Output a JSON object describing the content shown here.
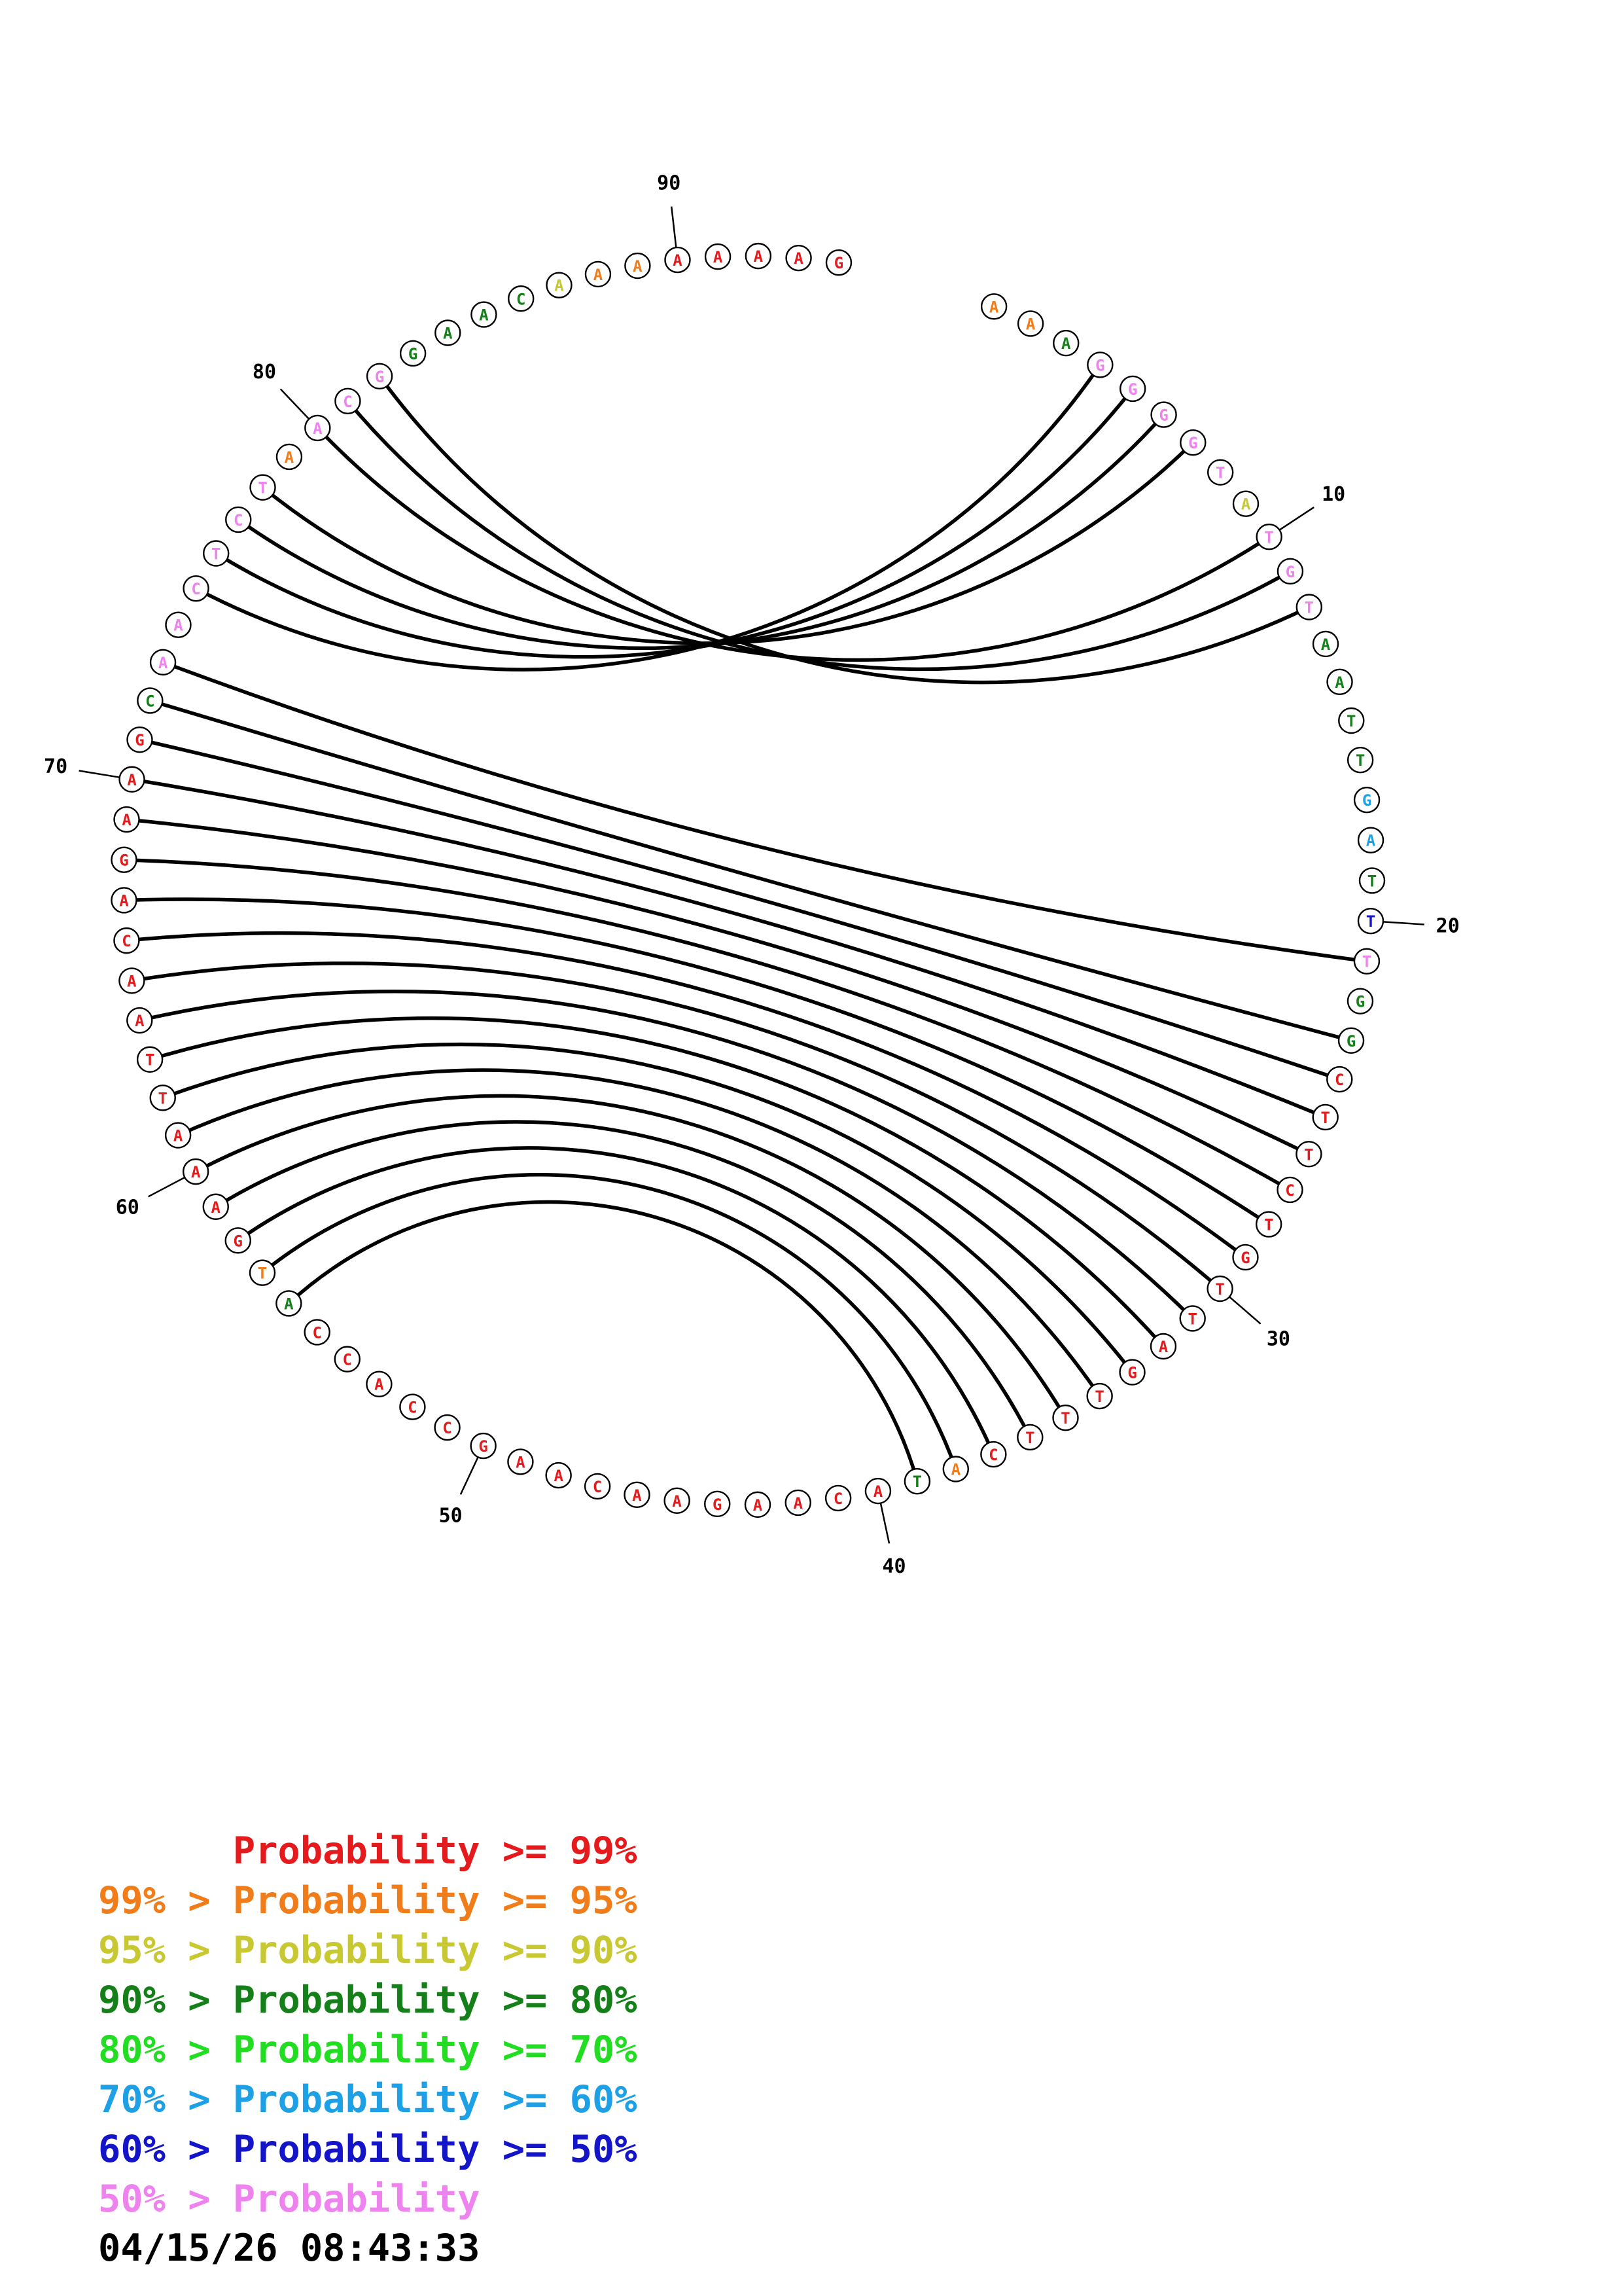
{
  "colors": {
    "red": "#e41a1c",
    "orange": "#f07d1a",
    "yellow": "#c8c832",
    "darkgreen": "#15801a",
    "green": "#22dd22",
    "lightblue": "#1ea0e6",
    "blue": "#1414c8",
    "pink": "#ee82ee"
  },
  "sequence": [
    {
      "n": "A",
      "c": "orange"
    },
    {
      "n": "A",
      "c": "orange"
    },
    {
      "n": "A",
      "c": "darkgreen"
    },
    {
      "n": "G",
      "c": "pink"
    },
    {
      "n": "G",
      "c": "pink"
    },
    {
      "n": "G",
      "c": "pink"
    },
    {
      "n": "G",
      "c": "pink"
    },
    {
      "n": "T",
      "c": "pink"
    },
    {
      "n": "A",
      "c": "yellow"
    },
    {
      "n": "T",
      "c": "pink"
    },
    {
      "n": "G",
      "c": "pink"
    },
    {
      "n": "T",
      "c": "pink"
    },
    {
      "n": "A",
      "c": "darkgreen"
    },
    {
      "n": "A",
      "c": "darkgreen"
    },
    {
      "n": "T",
      "c": "darkgreen"
    },
    {
      "n": "T",
      "c": "darkgreen"
    },
    {
      "n": "G",
      "c": "lightblue"
    },
    {
      "n": "A",
      "c": "lightblue"
    },
    {
      "n": "T",
      "c": "darkgreen"
    },
    {
      "n": "T",
      "c": "blue"
    },
    {
      "n": "T",
      "c": "pink"
    },
    {
      "n": "G",
      "c": "darkgreen"
    },
    {
      "n": "G",
      "c": "darkgreen"
    },
    {
      "n": "C",
      "c": "red"
    },
    {
      "n": "T",
      "c": "red"
    },
    {
      "n": "T",
      "c": "red"
    },
    {
      "n": "C",
      "c": "red"
    },
    {
      "n": "T",
      "c": "red"
    },
    {
      "n": "G",
      "c": "red"
    },
    {
      "n": "T",
      "c": "red"
    },
    {
      "n": "T",
      "c": "red"
    },
    {
      "n": "A",
      "c": "red"
    },
    {
      "n": "G",
      "c": "red"
    },
    {
      "n": "T",
      "c": "red"
    },
    {
      "n": "T",
      "c": "red"
    },
    {
      "n": "T",
      "c": "red"
    },
    {
      "n": "C",
      "c": "red"
    },
    {
      "n": "A",
      "c": "orange"
    },
    {
      "n": "T",
      "c": "darkgreen"
    },
    {
      "n": "A",
      "c": "red"
    },
    {
      "n": "C",
      "c": "red"
    },
    {
      "n": "A",
      "c": "red"
    },
    {
      "n": "A",
      "c": "red"
    },
    {
      "n": "G",
      "c": "red"
    },
    {
      "n": "A",
      "c": "red"
    },
    {
      "n": "A",
      "c": "red"
    },
    {
      "n": "C",
      "c": "red"
    },
    {
      "n": "A",
      "c": "red"
    },
    {
      "n": "A",
      "c": "red"
    },
    {
      "n": "G",
      "c": "red"
    },
    {
      "n": "C",
      "c": "red"
    },
    {
      "n": "C",
      "c": "red"
    },
    {
      "n": "A",
      "c": "red"
    },
    {
      "n": "C",
      "c": "red"
    },
    {
      "n": "C",
      "c": "red"
    },
    {
      "n": "A",
      "c": "darkgreen"
    },
    {
      "n": "T",
      "c": "orange"
    },
    {
      "n": "G",
      "c": "red"
    },
    {
      "n": "A",
      "c": "red"
    },
    {
      "n": "A",
      "c": "red"
    },
    {
      "n": "A",
      "c": "red"
    },
    {
      "n": "T",
      "c": "red"
    },
    {
      "n": "T",
      "c": "red"
    },
    {
      "n": "A",
      "c": "red"
    },
    {
      "n": "A",
      "c": "red"
    },
    {
      "n": "C",
      "c": "red"
    },
    {
      "n": "A",
      "c": "red"
    },
    {
      "n": "G",
      "c": "red"
    },
    {
      "n": "A",
      "c": "red"
    },
    {
      "n": "A",
      "c": "red"
    },
    {
      "n": "G",
      "c": "red"
    },
    {
      "n": "C",
      "c": "darkgreen"
    },
    {
      "n": "A",
      "c": "pink"
    },
    {
      "n": "A",
      "c": "pink"
    },
    {
      "n": "C",
      "c": "pink"
    },
    {
      "n": "T",
      "c": "pink"
    },
    {
      "n": "C",
      "c": "pink"
    },
    {
      "n": "T",
      "c": "pink"
    },
    {
      "n": "A",
      "c": "orange"
    },
    {
      "n": "A",
      "c": "pink"
    },
    {
      "n": "C",
      "c": "pink"
    },
    {
      "n": "G",
      "c": "pink"
    },
    {
      "n": "G",
      "c": "darkgreen"
    },
    {
      "n": "A",
      "c": "darkgreen"
    },
    {
      "n": "A",
      "c": "darkgreen"
    },
    {
      "n": "C",
      "c": "darkgreen"
    },
    {
      "n": "A",
      "c": "yellow"
    },
    {
      "n": "A",
      "c": "orange"
    },
    {
      "n": "A",
      "c": "orange"
    },
    {
      "n": "A",
      "c": "red"
    },
    {
      "n": "A",
      "c": "red"
    },
    {
      "n": "A",
      "c": "red"
    },
    {
      "n": "A",
      "c": "red"
    },
    {
      "n": "G",
      "c": "red"
    }
  ],
  "pairs": [
    [
      4,
      75
    ],
    [
      5,
      76
    ],
    [
      6,
      77
    ],
    [
      7,
      78
    ],
    [
      10,
      80
    ],
    [
      11,
      81
    ],
    [
      12,
      82
    ],
    [
      21,
      73
    ],
    [
      23,
      72
    ],
    [
      24,
      71
    ],
    [
      25,
      70
    ],
    [
      26,
      69
    ],
    [
      27,
      68
    ],
    [
      28,
      67
    ],
    [
      29,
      66
    ],
    [
      30,
      65
    ],
    [
      31,
      64
    ],
    [
      32,
      63
    ],
    [
      33,
      62
    ],
    [
      34,
      61
    ],
    [
      35,
      60
    ],
    [
      36,
      59
    ],
    [
      37,
      58
    ],
    [
      38,
      57
    ],
    [
      39,
      56
    ]
  ],
  "position_markers": [
    {
      "index": 10,
      "label": "10"
    },
    {
      "index": 20,
      "label": "20"
    },
    {
      "index": 30,
      "label": "30"
    },
    {
      "index": 40,
      "label": "40"
    },
    {
      "index": 50,
      "label": "50"
    },
    {
      "index": 60,
      "label": "60"
    },
    {
      "index": 70,
      "label": "70"
    },
    {
      "index": 80,
      "label": "80"
    },
    {
      "index": 90,
      "label": "90"
    }
  ],
  "legend": [
    {
      "text": "      Probability >= 99%",
      "color": "#e41a1c"
    },
    {
      "text": "99% > Probability >= 95%",
      "color": "#f07d1a"
    },
    {
      "text": "95% > Probability >= 90%",
      "color": "#c8c832"
    },
    {
      "text": "90% > Probability >= 80%",
      "color": "#15801a"
    },
    {
      "text": "80% > Probability >= 70%",
      "color": "#22dd22"
    },
    {
      "text": "70% > Probability >= 60%",
      "color": "#1ea0e6"
    },
    {
      "text": "60% > Probability >= 50%",
      "color": "#1414c8"
    },
    {
      "text": "50% > Probability",
      "color": "#ee82ee"
    }
  ],
  "timestamp": "04/15/26 08:43:33"
}
